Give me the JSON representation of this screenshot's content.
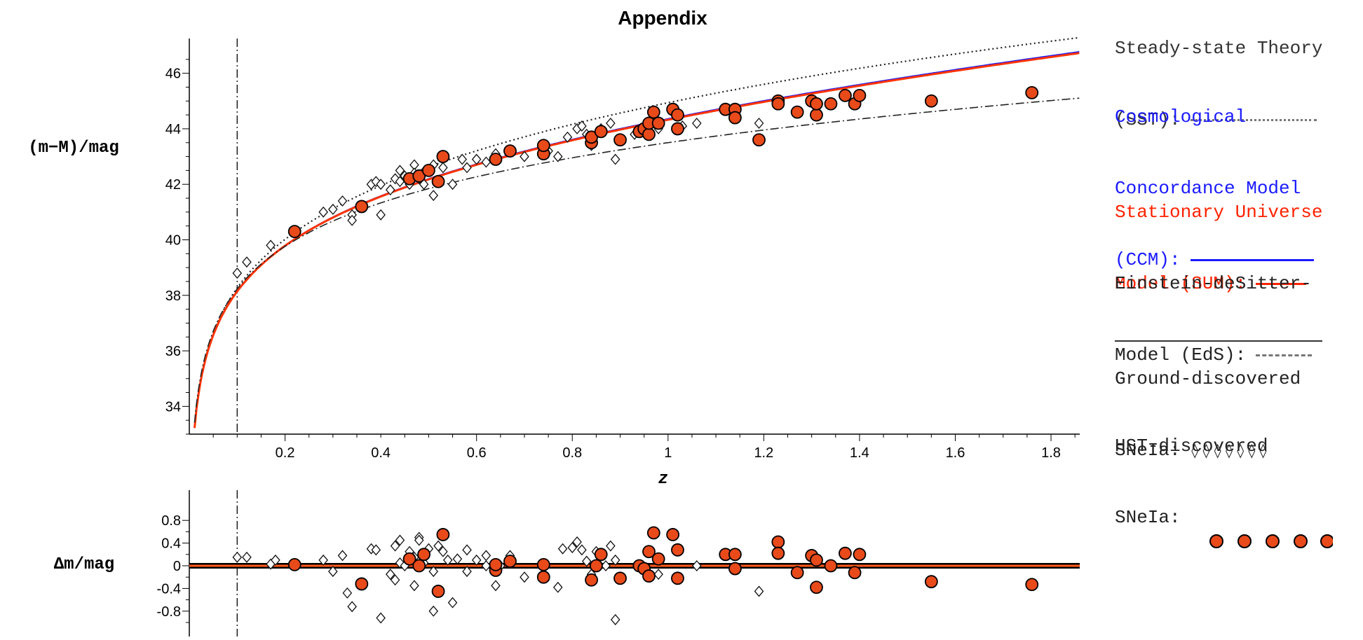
{
  "title": "Appendix",
  "legend": {
    "sst": {
      "line1": "Steady-state Theory",
      "line2": "(SST):",
      "color": "#555555"
    },
    "ccm": {
      "line1": "Cosmological",
      "line2": "Concordance Model",
      "line3": "(CCM):",
      "color": "#1a1aff"
    },
    "sum": {
      "line1": "Stationary Universe",
      "line2": "Model (SUM):",
      "color": "#ff2200"
    },
    "eds": {
      "line1": "Einstein-deSitter-",
      "line2": "Model (EdS):",
      "color": "#555555"
    },
    "ground": {
      "line1": "Ground-discovered",
      "line2": "SNeIa:",
      "symbols": "◊ ◊ ◊ ◊ ◊ ◊ ◊"
    },
    "hst": {
      "line1": "HST-discovered",
      "line2": "SNeIa:",
      "marker_color": "#e84a1a"
    }
  },
  "chart_data": [
    {
      "type": "scatter",
      "title": "Appendix",
      "xlabel": "z",
      "ylabel": "(m−M)/mag",
      "xlim": [
        0.0,
        1.86
      ],
      "ylim": [
        33.0,
        47.0
      ],
      "x_ticks": [
        "0.2",
        "0.4",
        "0.6",
        "0.8",
        "1",
        "1.2",
        "1.4",
        "1.6",
        "1.8"
      ],
      "y_ticks": [
        "34",
        "36",
        "38",
        "40",
        "42",
        "44",
        "46"
      ],
      "vertical_reference_z": 0.1,
      "curves": [
        {
          "name": "SST",
          "style": "dotted",
          "color": "#222222"
        },
        {
          "name": "CCM",
          "style": "solid",
          "color": "#1a1aff"
        },
        {
          "name": "SUM",
          "style": "solid",
          "color": "#ff3300"
        },
        {
          "name": "EdS",
          "style": "dashdot",
          "color": "#222222"
        }
      ],
      "series": [
        {
          "name": "Ground-discovered SNeIa",
          "marker": "diamond",
          "points": [
            [
              0.1,
              38.8
            ],
            [
              0.12,
              39.2
            ],
            [
              0.17,
              39.8
            ],
            [
              0.28,
              41.0
            ],
            [
              0.3,
              41.1
            ],
            [
              0.32,
              41.4
            ],
            [
              0.34,
              40.9
            ],
            [
              0.34,
              40.7
            ],
            [
              0.36,
              41.2
            ],
            [
              0.38,
              42.0
            ],
            [
              0.39,
              42.1
            ],
            [
              0.4,
              40.9
            ],
            [
              0.4,
              42.0
            ],
            [
              0.42,
              41.8
            ],
            [
              0.43,
              42.2
            ],
            [
              0.44,
              42.5
            ],
            [
              0.44,
              42.1
            ],
            [
              0.45,
              42.3
            ],
            [
              0.46,
              42.0
            ],
            [
              0.47,
              42.7
            ],
            [
              0.47,
              42.4
            ],
            [
              0.48,
              42.2
            ],
            [
              0.49,
              42.0
            ],
            [
              0.5,
              42.5
            ],
            [
              0.51,
              42.7
            ],
            [
              0.51,
              41.6
            ],
            [
              0.53,
              42.6
            ],
            [
              0.55,
              42.0
            ],
            [
              0.57,
              42.9
            ],
            [
              0.58,
              42.6
            ],
            [
              0.6,
              42.9
            ],
            [
              0.62,
              42.8
            ],
            [
              0.64,
              43.1
            ],
            [
              0.67,
              43.2
            ],
            [
              0.7,
              43.0
            ],
            [
              0.75,
              43.2
            ],
            [
              0.77,
              43.0
            ],
            [
              0.79,
              43.7
            ],
            [
              0.81,
              44.0
            ],
            [
              0.82,
              44.1
            ],
            [
              0.83,
              43.8
            ],
            [
              0.84,
              43.4
            ],
            [
              0.86,
              44.0
            ],
            [
              0.88,
              44.2
            ],
            [
              0.89,
              42.9
            ],
            [
              0.93,
              43.8
            ],
            [
              0.98,
              44.0
            ],
            [
              1.03,
              44.1
            ],
            [
              1.06,
              44.2
            ],
            [
              1.19,
              44.2
            ]
          ]
        },
        {
          "name": "HST-discovered SNeIa",
          "marker": "circle",
          "points": [
            [
              0.22,
              40.3
            ],
            [
              0.36,
              41.2
            ],
            [
              0.46,
              42.2
            ],
            [
              0.48,
              42.3
            ],
            [
              0.5,
              42.5
            ],
            [
              0.52,
              42.1
            ],
            [
              0.53,
              43.0
            ],
            [
              0.64,
              42.9
            ],
            [
              0.67,
              43.2
            ],
            [
              0.74,
              43.1
            ],
            [
              0.74,
              43.4
            ],
            [
              0.84,
              43.5
            ],
            [
              0.84,
              43.7
            ],
            [
              0.86,
              43.9
            ],
            [
              0.9,
              43.6
            ],
            [
              0.94,
              43.9
            ],
            [
              0.95,
              44.0
            ],
            [
              0.96,
              43.8
            ],
            [
              0.96,
              44.2
            ],
            [
              0.97,
              44.6
            ],
            [
              0.98,
              44.2
            ],
            [
              1.01,
              44.7
            ],
            [
              1.02,
              44.5
            ],
            [
              1.02,
              44.0
            ],
            [
              1.12,
              44.7
            ],
            [
              1.14,
              44.7
            ],
            [
              1.14,
              44.4
            ],
            [
              1.19,
              43.6
            ],
            [
              1.23,
              45.0
            ],
            [
              1.23,
              44.9
            ],
            [
              1.27,
              44.6
            ],
            [
              1.3,
              45.0
            ],
            [
              1.31,
              44.5
            ],
            [
              1.31,
              44.9
            ],
            [
              1.34,
              44.9
            ],
            [
              1.37,
              45.2
            ],
            [
              1.39,
              44.9
            ],
            [
              1.4,
              45.2
            ],
            [
              1.55,
              45.0
            ],
            [
              1.76,
              45.3
            ]
          ]
        }
      ]
    },
    {
      "type": "scatter",
      "xlabel": "",
      "ylabel": "Δm/mag",
      "xlim": [
        0.0,
        1.86
      ],
      "ylim": [
        -1.0,
        0.95
      ],
      "y_ticks": [
        "0.8",
        "0.4",
        "0",
        "-0.4",
        "-0.8"
      ],
      "series": [
        {
          "name": "Ground-discovered SNeIa",
          "marker": "diamond",
          "points": [
            [
              0.1,
              0.15
            ],
            [
              0.12,
              0.15
            ],
            [
              0.17,
              0.03
            ],
            [
              0.18,
              0.1
            ],
            [
              0.28,
              0.1
            ],
            [
              0.3,
              -0.1
            ],
            [
              0.32,
              0.18
            ],
            [
              0.33,
              -0.48
            ],
            [
              0.34,
              -0.72
            ],
            [
              0.38,
              0.3
            ],
            [
              0.39,
              0.28
            ],
            [
              0.4,
              -0.92
            ],
            [
              0.42,
              -0.15
            ],
            [
              0.43,
              -0.25
            ],
            [
              0.43,
              0.35
            ],
            [
              0.44,
              0.45
            ],
            [
              0.44,
              0.05
            ],
            [
              0.45,
              0.0
            ],
            [
              0.46,
              0.25
            ],
            [
              0.46,
              0.12
            ],
            [
              0.47,
              0.15
            ],
            [
              0.47,
              -0.35
            ],
            [
              0.48,
              0.5
            ],
            [
              0.48,
              0.45
            ],
            [
              0.49,
              0.05
            ],
            [
              0.5,
              0.3
            ],
            [
              0.51,
              -0.1
            ],
            [
              0.51,
              -0.8
            ],
            [
              0.52,
              0.35
            ],
            [
              0.53,
              0.25
            ],
            [
              0.54,
              0.1
            ],
            [
              0.55,
              -0.65
            ],
            [
              0.56,
              0.12
            ],
            [
              0.58,
              0.28
            ],
            [
              0.58,
              -0.1
            ],
            [
              0.6,
              0.1
            ],
            [
              0.62,
              0.0
            ],
            [
              0.62,
              0.18
            ],
            [
              0.64,
              -0.35
            ],
            [
              0.65,
              0.0
            ],
            [
              0.67,
              0.18
            ],
            [
              0.7,
              -0.2
            ],
            [
              0.77,
              -0.38
            ],
            [
              0.78,
              0.3
            ],
            [
              0.8,
              0.32
            ],
            [
              0.81,
              0.42
            ],
            [
              0.82,
              0.28
            ],
            [
              0.83,
              0.08
            ],
            [
              0.84,
              -0.15
            ],
            [
              0.85,
              0.25
            ],
            [
              0.87,
              0.0
            ],
            [
              0.88,
              0.35
            ],
            [
              0.89,
              -0.95
            ],
            [
              0.89,
              0.1
            ],
            [
              0.98,
              -0.15
            ],
            [
              1.06,
              0.0
            ],
            [
              1.19,
              -0.45
            ]
          ]
        },
        {
          "name": "HST-discovered SNeIa",
          "marker": "circle",
          "points": [
            [
              0.22,
              0.02
            ],
            [
              0.36,
              -0.32
            ],
            [
              0.46,
              0.12
            ],
            [
              0.48,
              0.0
            ],
            [
              0.49,
              0.2
            ],
            [
              0.52,
              -0.45
            ],
            [
              0.53,
              0.55
            ],
            [
              0.64,
              -0.08
            ],
            [
              0.64,
              0.02
            ],
            [
              0.67,
              0.08
            ],
            [
              0.74,
              0.02
            ],
            [
              0.74,
              -0.2
            ],
            [
              0.84,
              -0.25
            ],
            [
              0.85,
              0.0
            ],
            [
              0.86,
              0.2
            ],
            [
              0.9,
              -0.22
            ],
            [
              0.94,
              0.0
            ],
            [
              0.95,
              -0.05
            ],
            [
              0.96,
              -0.18
            ],
            [
              0.96,
              0.25
            ],
            [
              0.97,
              0.58
            ],
            [
              0.98,
              0.12
            ],
            [
              1.01,
              0.55
            ],
            [
              1.02,
              0.28
            ],
            [
              1.02,
              -0.22
            ],
            [
              1.12,
              0.2
            ],
            [
              1.14,
              0.2
            ],
            [
              1.14,
              -0.05
            ],
            [
              1.23,
              0.42
            ],
            [
              1.23,
              0.22
            ],
            [
              1.27,
              -0.12
            ],
            [
              1.3,
              0.18
            ],
            [
              1.31,
              0.1
            ],
            [
              1.31,
              -0.38
            ],
            [
              1.34,
              0.0
            ],
            [
              1.37,
              0.22
            ],
            [
              1.39,
              -0.12
            ],
            [
              1.4,
              0.2
            ],
            [
              1.55,
              -0.28
            ],
            [
              1.76,
              -0.33
            ]
          ]
        }
      ]
    }
  ]
}
